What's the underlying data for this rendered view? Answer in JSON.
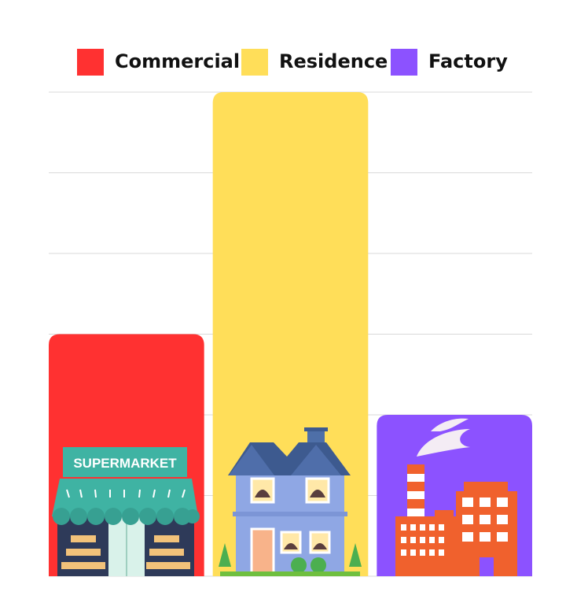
{
  "chart_data": {
    "type": "bar",
    "categories": [
      "Commercial",
      "Residence",
      "Factory"
    ],
    "values": [
      3,
      6,
      2
    ],
    "colors": [
      "#FF3131",
      "#FFDE59",
      "#8C52FF"
    ],
    "ylim": [
      0,
      6
    ],
    "grid": true,
    "legend_position": "top",
    "legend": [
      {
        "label": "Commercial",
        "color": "#FF3131"
      },
      {
        "label": "Residence",
        "color": "#FFDE59"
      },
      {
        "label": "Factory",
        "color": "#8C52FF"
      }
    ],
    "bar_icons": [
      "supermarket",
      "house",
      "factory"
    ],
    "sign_text": "SUPERMARKET"
  }
}
